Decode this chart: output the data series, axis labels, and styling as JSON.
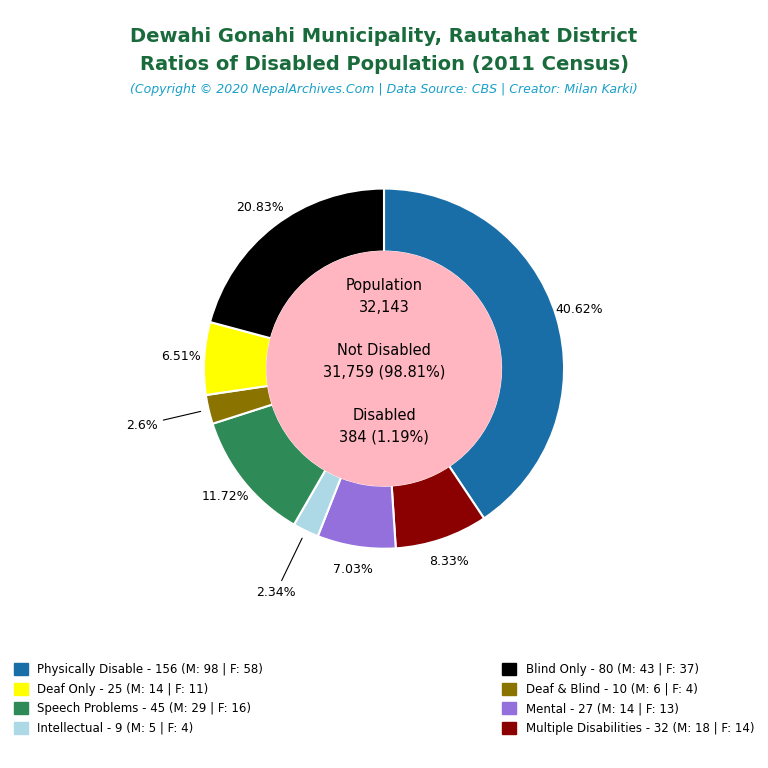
{
  "title_line1": "Dewahi Gonahi Municipality, Rautahat District",
  "title_line2": "Ratios of Disabled Population (2011 Census)",
  "subtitle": "(Copyright © 2020 NepalArchives.Com | Data Source: CBS | Creator: Milan Karki)",
  "title_color": "#1a6b3c",
  "subtitle_color": "#1aa0c8",
  "total_population": 32143,
  "not_disabled": 31759,
  "not_disabled_pct": 98.81,
  "disabled": 384,
  "disabled_pct": 1.19,
  "categories": [
    "Physically Disable - 156 (M: 98 | F: 58)",
    "Deaf Only - 25 (M: 14 | F: 11)",
    "Speech Problems - 45 (M: 29 | F: 16)",
    "Intellectual - 9 (M: 5 | F: 4)",
    "Blind Only - 80 (M: 43 | F: 37)",
    "Deaf & Blind - 10 (M: 6 | F: 4)",
    "Mental - 27 (M: 14 | F: 13)",
    "Multiple Disabilities - 32 (M: 18 | F: 14)"
  ],
  "values": [
    156,
    25,
    45,
    9,
    80,
    10,
    27,
    32
  ],
  "colors": [
    "#1a6ea8",
    "#ffff00",
    "#2e8b57",
    "#add8e6",
    "#000000",
    "#8b7300",
    "#9370db",
    "#8b0000"
  ],
  "percentages": [
    40.62,
    6.51,
    11.72,
    2.34,
    20.83,
    2.6,
    7.03,
    8.33
  ],
  "center_color": "#ffb6c1",
  "bg_color": "#ffffff",
  "donut_width": 0.35,
  "order": [
    0,
    7,
    6,
    3,
    2,
    5,
    1,
    4
  ]
}
